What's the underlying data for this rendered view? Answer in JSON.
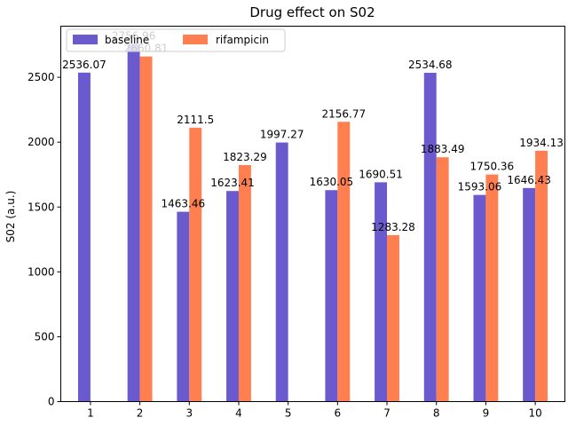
{
  "chart_data": {
    "type": "bar",
    "title": "Drug effect on S02",
    "xlabel": "",
    "ylabel": "S02 (a.u.)",
    "categories": [
      "1",
      "2",
      "3",
      "4",
      "5",
      "6",
      "7",
      "8",
      "9",
      "10"
    ],
    "series": [
      {
        "name": "baseline",
        "color": "#6a5acd",
        "values": [
          2536.07,
          2756.96,
          1463.46,
          1623.41,
          1997.27,
          1630.05,
          1690.51,
          2534.68,
          1593.06,
          1646.43
        ],
        "labels": [
          "2536.07",
          "2756.96",
          "1463.46",
          "1623.41",
          "1997.27",
          "1630.05",
          "1690.51",
          "2534.68",
          "1593.06",
          "1646.43"
        ]
      },
      {
        "name": "rifampicin",
        "color": "#ff7f50",
        "values": [
          null,
          2660.81,
          2111.5,
          1823.29,
          null,
          2156.77,
          1283.28,
          1883.49,
          1750.36,
          1934.13
        ],
        "labels": [
          null,
          "2660.81",
          "2111.5",
          "1823.29",
          null,
          "2156.77",
          "1283.28",
          "1883.49",
          "1750.36",
          "1934.13"
        ]
      }
    ],
    "ylim": [
      0,
      2894
    ],
    "yticks": [
      0,
      500,
      1000,
      1500,
      2000,
      2500
    ],
    "ytick_labels": [
      "0",
      "500",
      "1000",
      "1500",
      "2000",
      "2500"
    ],
    "grid": false,
    "legend": "top-left"
  }
}
